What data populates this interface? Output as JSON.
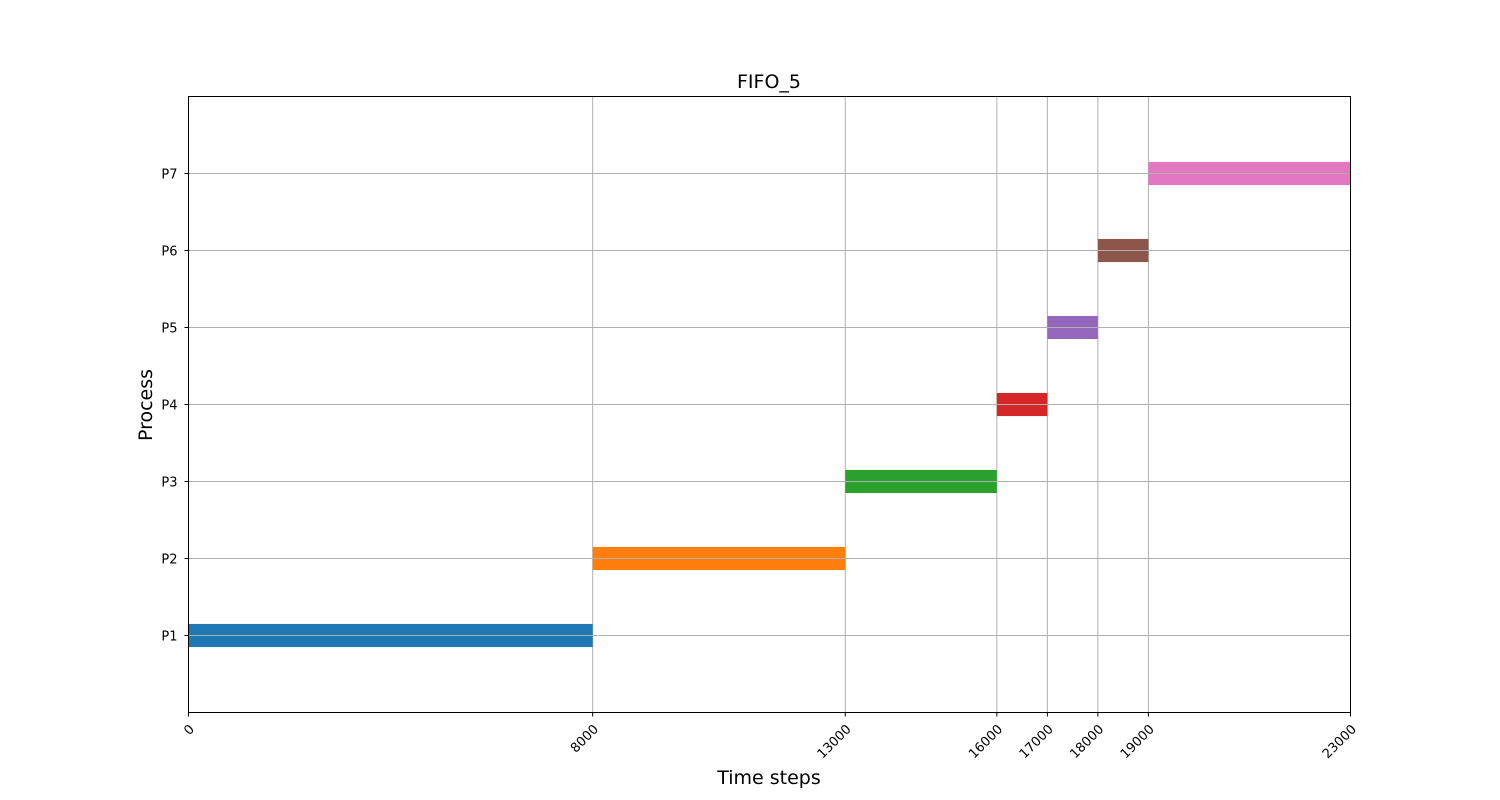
{
  "chart_data": {
    "type": "gantt",
    "title": "FIFO_5",
    "xlabel": "Time steps",
    "ylabel": "Process",
    "xlim": [
      0,
      23000
    ],
    "ylim": [
      0,
      8
    ],
    "grid": true,
    "xticks": [
      0,
      8000,
      13000,
      16000,
      17000,
      18000,
      19000,
      23000
    ],
    "xtick_labels": [
      "0",
      "8000",
      "13000",
      "16000",
      "17000",
      "18000",
      "19000",
      "23000"
    ],
    "categories": [
      "P1",
      "P2",
      "P3",
      "P4",
      "P5",
      "P6",
      "P7"
    ],
    "tasks": [
      {
        "process": "P1",
        "start": 0,
        "end": 8000,
        "color": "#1f77b4"
      },
      {
        "process": "P2",
        "start": 8000,
        "end": 13000,
        "color": "#ff7f0e"
      },
      {
        "process": "P3",
        "start": 13000,
        "end": 16000,
        "color": "#2ca02c"
      },
      {
        "process": "P4",
        "start": 16000,
        "end": 17000,
        "color": "#d62728"
      },
      {
        "process": "P5",
        "start": 17000,
        "end": 18000,
        "color": "#9467bd"
      },
      {
        "process": "P6",
        "start": 18000,
        "end": 19000,
        "color": "#8c564b"
      },
      {
        "process": "P7",
        "start": 19000,
        "end": 23000,
        "color": "#e377c2"
      }
    ]
  }
}
